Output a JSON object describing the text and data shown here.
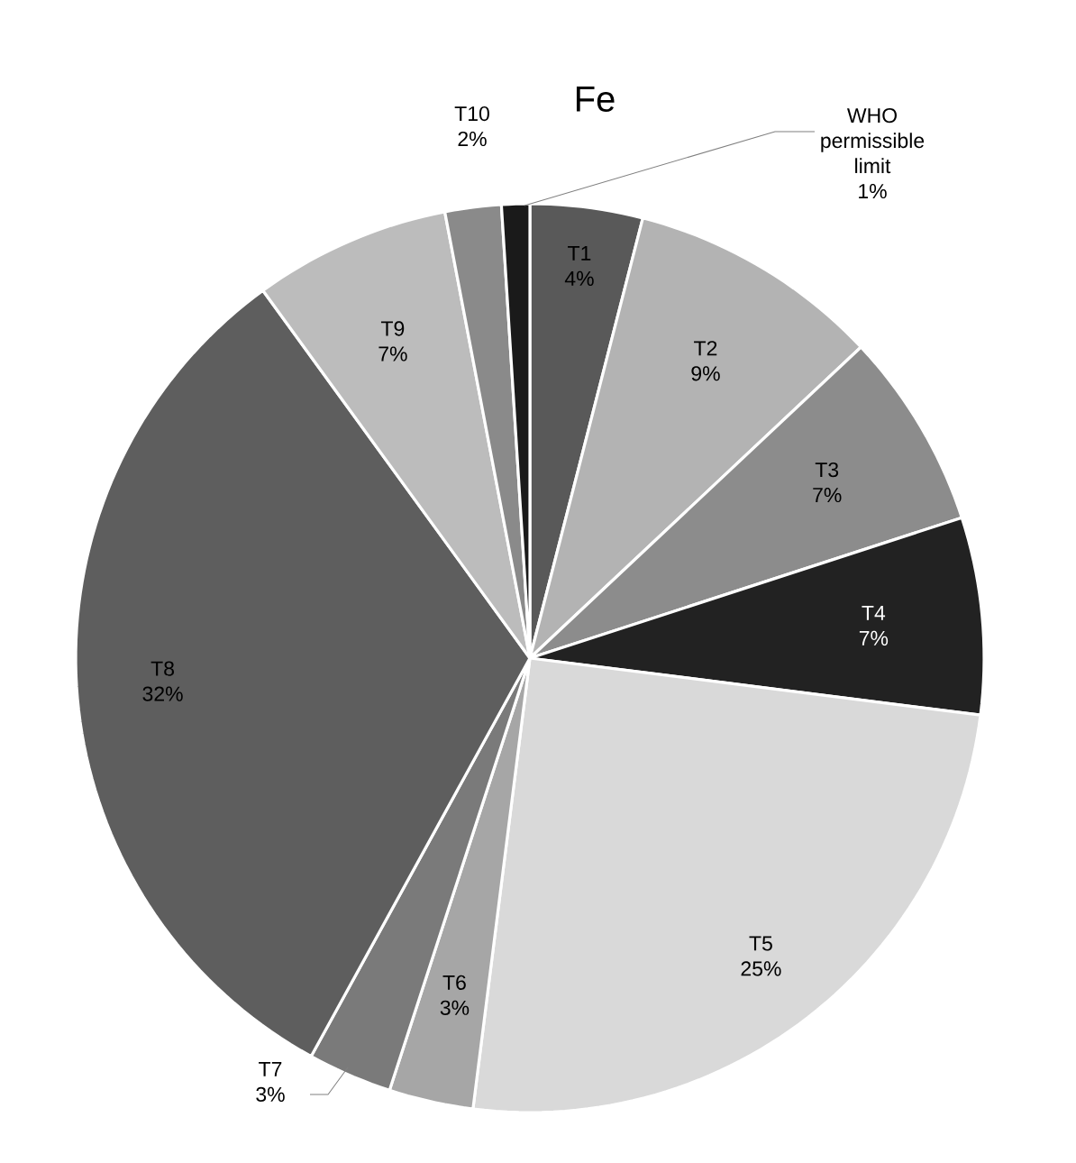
{
  "chart_data": {
    "type": "pie",
    "title": "Fe",
    "categories": [
      "T1",
      "T2",
      "T3",
      "T4",
      "T5",
      "T6",
      "T7",
      "T8",
      "T9",
      "T10",
      "WHO permissible limit"
    ],
    "values": [
      4,
      9,
      7,
      7,
      25,
      3,
      3,
      32,
      7,
      2,
      1
    ],
    "colors": [
      "#595959",
      "#b3b3b3",
      "#8c8c8c",
      "#222222",
      "#d9d9d9",
      "#a6a6a6",
      "#7a7a7a",
      "#5e5e5e",
      "#bcbcbc",
      "#8a8a8a",
      "#1a1a1a"
    ],
    "value_labels": [
      "4%",
      "9%",
      "7%",
      "7%",
      "25%",
      "3%",
      "3%",
      "32%",
      "7%",
      "2%",
      "1%"
    ]
  }
}
